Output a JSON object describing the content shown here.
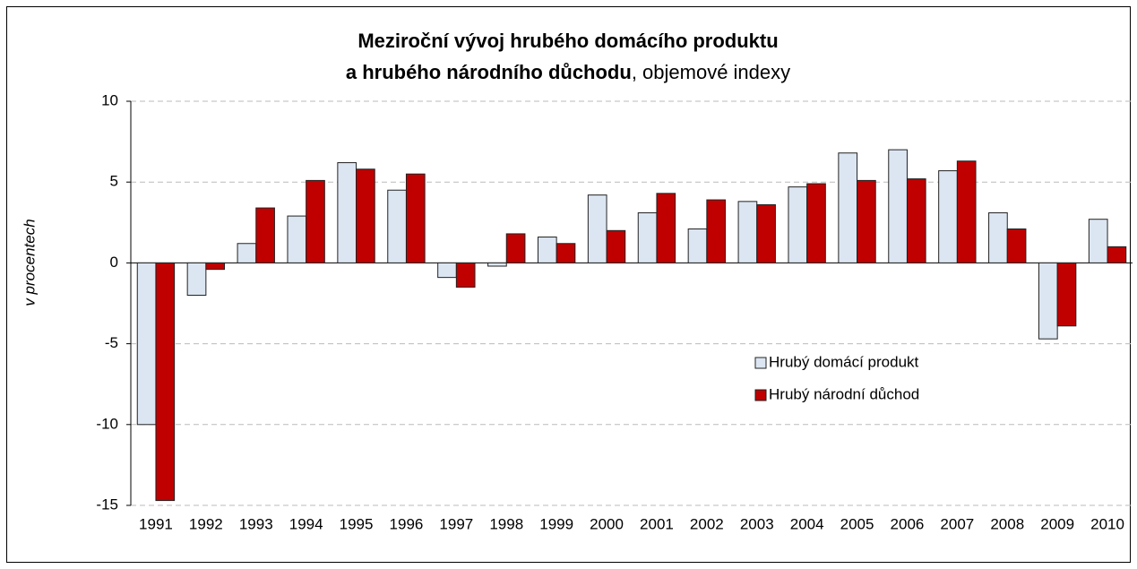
{
  "chart_data": {
    "type": "bar",
    "title": [
      "Meziroční vývoj hrubého domácího produktu",
      "a hrubého národního důchodu",
      ", objemové indexy"
    ],
    "y_label": "v procentech",
    "categories": [
      "1991",
      "1992",
      "1993",
      "1994",
      "1995",
      "1996",
      "1997",
      "1998",
      "1999",
      "2000",
      "2001",
      "2002",
      "2003",
      "2004",
      "2005",
      "2006",
      "2007",
      "2008",
      "2009",
      "2010"
    ],
    "series": [
      {
        "name": "Hrubý domácí produkt",
        "color": "#dce6f2",
        "values": [
          -10.0,
          -2.0,
          1.2,
          2.9,
          6.2,
          4.5,
          -0.9,
          -0.2,
          1.6,
          4.2,
          3.1,
          2.1,
          3.8,
          4.7,
          6.8,
          7.0,
          5.7,
          3.1,
          -4.7,
          2.7
        ]
      },
      {
        "name": "Hrubý národní důchod",
        "color": "#c00000",
        "values": [
          -14.7,
          -0.4,
          3.4,
          5.1,
          5.8,
          5.5,
          -1.5,
          1.8,
          1.2,
          2.0,
          4.3,
          3.9,
          3.6,
          4.9,
          5.1,
          5.2,
          6.3,
          2.1,
          -3.9,
          1.0
        ]
      }
    ],
    "ylim": [
      -15,
      10
    ],
    "yticks": [
      10,
      5,
      0,
      -5,
      -10,
      -15
    ],
    "grid": true,
    "legend": "right"
  }
}
